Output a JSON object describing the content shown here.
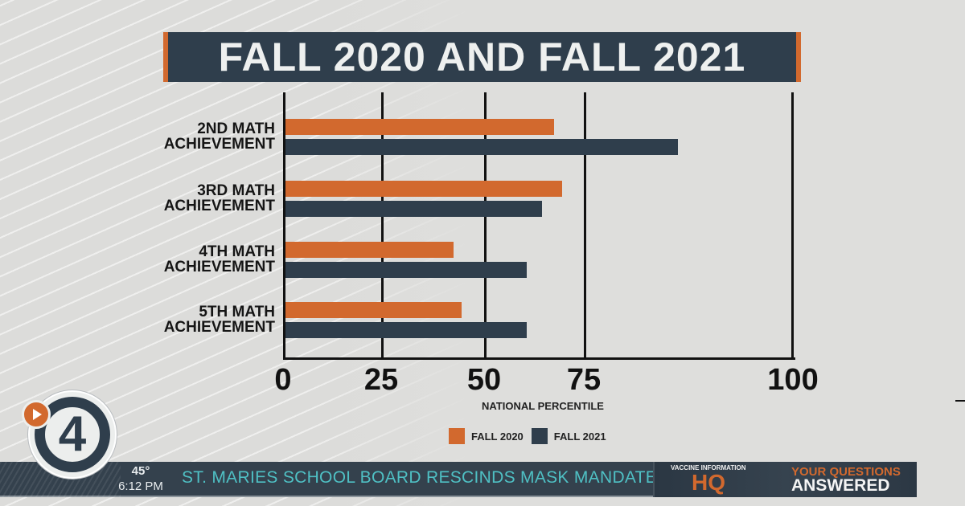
{
  "title": "FALL 2020 AND FALL 2021",
  "colors": {
    "fall_2020": "#d2692e",
    "fall_2021": "#2f3e4c",
    "headline_text": "#4fc0c4",
    "ticker_bg": "#34414d"
  },
  "chart_data": {
    "type": "bar",
    "orientation": "horizontal",
    "title": "FALL 2020 AND FALL 2021",
    "categories": [
      "2ND MATH ACHIEVEMENT",
      "3RD MATH ACHIEVEMENT",
      "4TH MATH ACHIEVEMENT",
      "5TH MATH ACHIEVEMENT"
    ],
    "category_lines": [
      [
        "2ND MATH",
        "ACHIEVEMENT"
      ],
      [
        "3RD MATH",
        "ACHIEVEMENT"
      ],
      [
        "4TH MATH",
        "ACHIEVEMENT"
      ],
      [
        "5TH MATH",
        "ACHIEVEMENT"
      ]
    ],
    "series": [
      {
        "name": "FALL 2020",
        "color": "#d2692e",
        "values": [
          67,
          69,
          42,
          44
        ]
      },
      {
        "name": "FALL 2021",
        "color": "#2f3e4c",
        "values": [
          86,
          64,
          60,
          60
        ]
      }
    ],
    "xlabel": "NATIONAL PERCENTILE",
    "ylabel": "",
    "xlim": [
      0,
      100
    ],
    "xticks": [
      "0",
      "25",
      "50",
      "75",
      "100"
    ],
    "grid": true,
    "legend_position": "bottom"
  },
  "legend": [
    {
      "label": "FALL 2020",
      "color": "#d2692e"
    },
    {
      "label": "FALL 2021",
      "color": "#2f3e4c"
    }
  ],
  "station_logo": {
    "number": "4",
    "icon": "play-icon"
  },
  "ticker": {
    "temperature": "45°",
    "time": "6:12 PM",
    "headline": "ST. MARIES SCHOOL BOARD RESCINDS MASK MANDATE",
    "promo": {
      "subtitle": "VACCINE INFORMATION",
      "brand": "HQ",
      "line1": "YOUR QUESTIONS",
      "line2": "ANSWERED"
    }
  }
}
